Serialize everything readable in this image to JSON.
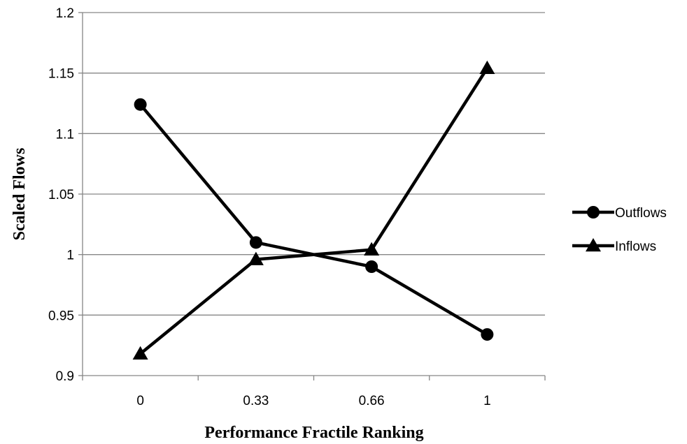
{
  "chart_data": {
    "type": "line",
    "title": "",
    "xlabel": "Performance Fractile Ranking",
    "ylabel": "Scaled Flows",
    "categories": [
      "0",
      "0.33",
      "0.66",
      "1"
    ],
    "ylim": [
      0.9,
      1.2
    ],
    "yticks": [
      "0.9",
      "0.95",
      "1",
      "1.05",
      "1.1",
      "1.15",
      "1.2"
    ],
    "grid": "horizontal",
    "legend_position": "right",
    "series": [
      {
        "name": "Outflows",
        "marker": "circle",
        "values": [
          1.124,
          1.01,
          0.99,
          0.934
        ]
      },
      {
        "name": "Inflows",
        "marker": "triangle",
        "values": [
          0.918,
          0.996,
          1.004,
          1.154
        ]
      }
    ],
    "colors": {
      "line": "#000000",
      "grid": "#868686",
      "axis": "#868686"
    }
  }
}
